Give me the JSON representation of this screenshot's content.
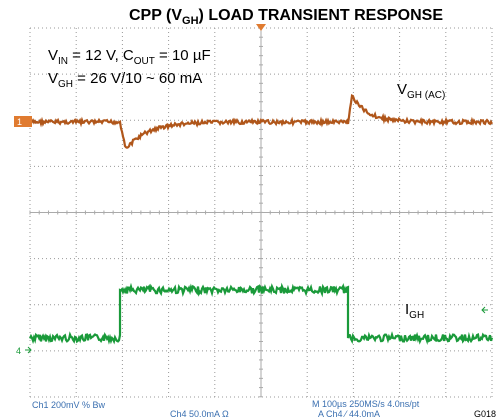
{
  "title": [
    {
      "text": "CPP (V"
    },
    {
      "sub": "GH"
    },
    {
      "text": ") LOAD TRANSIENT RESPONSE"
    }
  ],
  "conditions": [
    [
      {
        "text": "V"
      },
      {
        "sub": "IN"
      },
      {
        "text": " = 12 V, C"
      },
      {
        "sub": "OUT"
      },
      {
        "text": " = 10 µF"
      }
    ],
    [
      {
        "text": "V"
      },
      {
        "sub": "GH"
      },
      {
        "text": " = 26 V/10 ~ 60 mA"
      }
    ]
  ],
  "trace_labels": [
    [
      {
        "text": "V"
      },
      {
        "sub": "GH (AC)"
      }
    ],
    [
      {
        "text": "I"
      },
      {
        "sub": "GH"
      }
    ]
  ],
  "channel_markers": [
    "1",
    "4"
  ],
  "readouts": {
    "ch1": "Ch1     200mV   %  Bw",
    "ch4": "Ch4     50.0mA  Ω",
    "timebase": "M 100µs 250MS/s      4.0ns/pt",
    "trigger": "A  Ch4  ⁄  44.0mA",
    "figure_id": "G018"
  }
}
